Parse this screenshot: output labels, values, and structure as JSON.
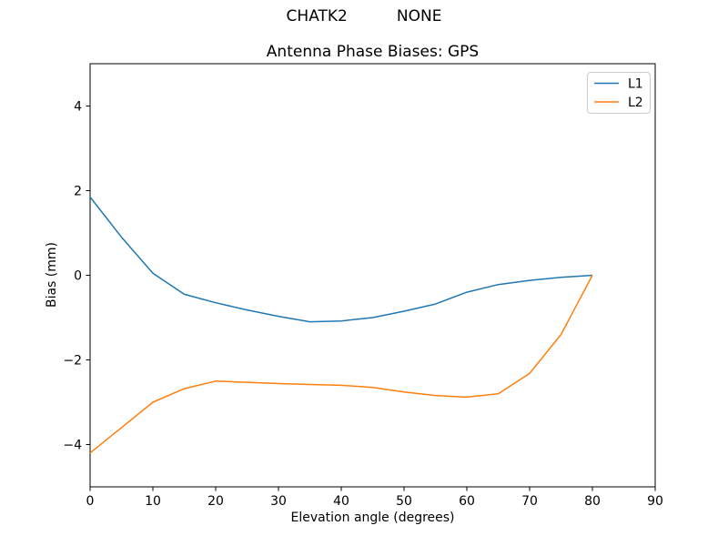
{
  "chart_data": {
    "type": "line",
    "suptitle": "CHATK2          NONE",
    "title": "Antenna Phase Biases: GPS",
    "xlabel": "Elevation angle (degrees)",
    "ylabel": "Bias (mm)",
    "xlim": [
      0,
      90
    ],
    "ylim": [
      -5,
      5
    ],
    "xticks": [
      0,
      10,
      20,
      30,
      40,
      50,
      60,
      70,
      80,
      90
    ],
    "yticks": [
      -4,
      -2,
      0,
      2,
      4
    ],
    "grid": false,
    "legend": {
      "position": "upper right",
      "entries": [
        "L1",
        "L2"
      ]
    },
    "x": [
      0,
      5,
      10,
      15,
      20,
      25,
      30,
      35,
      40,
      45,
      50,
      55,
      60,
      65,
      70,
      75,
      80
    ],
    "series": [
      {
        "name": "L1",
        "color": "#1f77b4",
        "values": [
          1.85,
          0.9,
          0.05,
          -0.45,
          -0.65,
          -0.82,
          -0.97,
          -1.1,
          -1.08,
          -1.0,
          -0.85,
          -0.68,
          -0.4,
          -0.22,
          -0.12,
          -0.05,
          0.0
        ]
      },
      {
        "name": "L2",
        "color": "#ff7f0e",
        "values": [
          -4.2,
          -3.6,
          -3.0,
          -2.68,
          -2.5,
          -2.53,
          -2.56,
          -2.58,
          -2.6,
          -2.65,
          -2.76,
          -2.84,
          -2.88,
          -2.8,
          -2.32,
          -1.4,
          0.0
        ]
      }
    ]
  },
  "colors": {
    "background": "#ffffff",
    "axes": "#000000",
    "legend_border": "#cccccc"
  }
}
